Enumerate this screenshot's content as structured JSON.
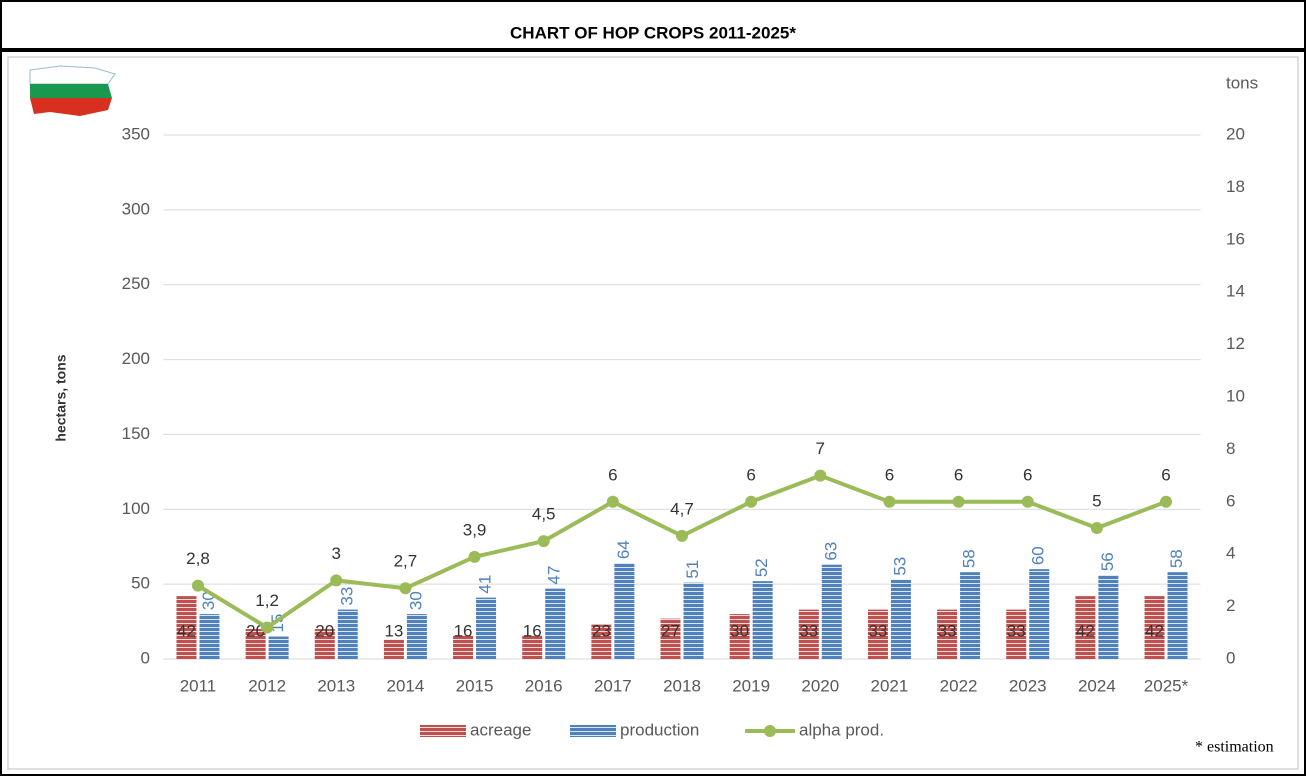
{
  "chart_data": {
    "type": "bar",
    "title": "CHART OF HOP CROPS 2011-2025*",
    "y_label": "hectars, tons",
    "y2_label": "tons",
    "note": "* estimation",
    "categories": [
      "2011",
      "2012",
      "2013",
      "2014",
      "2015",
      "2016",
      "2017",
      "2018",
      "2019",
      "2020",
      "2021",
      "2022",
      "2023",
      "2024",
      "2025*"
    ],
    "series": [
      {
        "name": "acreage",
        "type": "bar",
        "color": "#c0504d",
        "values": [
          42,
          20,
          20,
          13,
          16,
          16,
          23,
          27,
          30,
          33,
          33,
          33,
          33,
          42,
          42
        ]
      },
      {
        "name": "production",
        "type": "bar",
        "color": "#4f81bd",
        "values": [
          30,
          15,
          33,
          30,
          41,
          47,
          64,
          51,
          52,
          63,
          53,
          58,
          60,
          56,
          58
        ]
      },
      {
        "name": "alpha prod.",
        "type": "line",
        "axis": "y2",
        "color": "#9bbb59",
        "values": [
          2.8,
          1.2,
          3,
          2.7,
          3.9,
          4.5,
          6,
          4.7,
          6,
          7,
          6,
          6,
          6,
          5,
          6
        ],
        "value_labels": [
          "2,8",
          "1,2",
          "3",
          "2,7",
          "3,9",
          "4,5",
          "6",
          "4,7",
          "6",
          "7",
          "6",
          "6",
          "6",
          "5",
          "6"
        ]
      }
    ],
    "ylim": [
      0,
      350
    ],
    "yticks": [
      0,
      50,
      100,
      150,
      200,
      250,
      300,
      350
    ],
    "y2lim": [
      0,
      20
    ],
    "y2ticks": [
      0,
      2,
      4,
      6,
      8,
      10,
      12,
      14,
      16,
      18,
      20
    ],
    "grid": true,
    "legend": "bottom"
  }
}
